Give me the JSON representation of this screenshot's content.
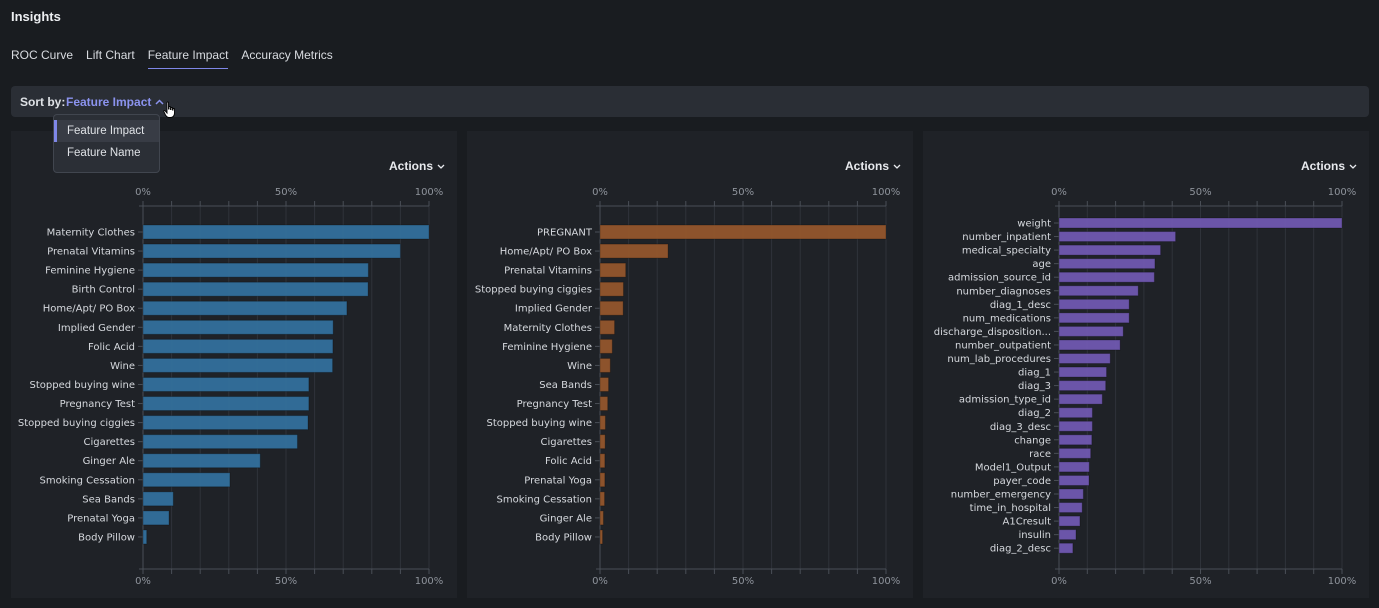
{
  "header": {
    "title": "Insights"
  },
  "tabs": [
    {
      "label": "ROC Curve",
      "active": false
    },
    {
      "label": "Lift Chart",
      "active": false
    },
    {
      "label": "Feature Impact",
      "active": true
    },
    {
      "label": "Accuracy Metrics",
      "active": false
    }
  ],
  "sort": {
    "label": "Sort by:",
    "value": "Feature Impact",
    "options": [
      {
        "label": "Feature Impact",
        "selected": true
      },
      {
        "label": "Feature Name",
        "selected": false
      }
    ]
  },
  "colors": {
    "accent": "#8b93ee",
    "series1": "#33709c",
    "series2": "#93562c",
    "series3": "#7059b0"
  },
  "panels": [
    {
      "actions_label": "Actions"
    },
    {
      "actions_label": "Actions"
    },
    {
      "actions_label": "Actions"
    }
  ],
  "chart_data": [
    {
      "type": "bar",
      "orientation": "horizontal",
      "title": "",
      "xlabel": "",
      "ylabel": "",
      "xlim": [
        0,
        100
      ],
      "x_ticks": [
        "0%",
        "50%",
        "100%"
      ],
      "grid": true,
      "color": "#33709c",
      "categories": [
        "Maternity Clothes",
        "Prenatal Vitamins",
        "Feminine Hygiene",
        "Birth Control",
        "Home/Apt/ PO Box",
        "Implied Gender",
        "Folic Acid",
        "Wine",
        "Stopped buying wine",
        "Pregnancy Test",
        "Stopped buying ciggies",
        "Cigarettes",
        "Ginger Ale",
        "Smoking Cessation",
        "Sea Bands",
        "Prenatal Yoga",
        "Body Pillow"
      ],
      "values": [
        100,
        90,
        78.8,
        78.7,
        71.3,
        66.5,
        66.4,
        66.3,
        58,
        58,
        57.7,
        54,
        41,
        30.4,
        10.6,
        9.1,
        1.3
      ]
    },
    {
      "type": "bar",
      "orientation": "horizontal",
      "title": "",
      "xlabel": "",
      "ylabel": "",
      "xlim": [
        0,
        100
      ],
      "x_ticks": [
        "0%",
        "50%",
        "100%"
      ],
      "grid": true,
      "color": "#93562c",
      "categories": [
        "PREGNANT",
        "Home/Apt/ PO Box",
        "Prenatal Vitamins",
        "Stopped buying ciggies",
        "Implied Gender",
        "Maternity Clothes",
        "Feminine Hygiene",
        "Wine",
        "Sea Bands",
        "Pregnancy Test",
        "Stopped buying wine",
        "Cigarettes",
        "Folic Acid",
        "Prenatal Yoga",
        "Smoking Cessation",
        "Ginger Ale",
        "Body Pillow"
      ],
      "values": [
        100,
        23.8,
        9,
        8.2,
        8.1,
        5.1,
        4.3,
        3.6,
        3.0,
        2.7,
        1.9,
        1.8,
        1.7,
        1.7,
        1.6,
        1.2,
        0.9
      ]
    },
    {
      "type": "bar",
      "orientation": "horizontal",
      "title": "",
      "xlabel": "",
      "ylabel": "",
      "xlim": [
        0,
        100
      ],
      "x_ticks": [
        "0%",
        "50%",
        "100%"
      ],
      "grid": true,
      "color": "#7059b0",
      "categories": [
        "weight",
        "number_inpatient",
        "medical_specialty",
        "age",
        "admission_source_id",
        "number_diagnoses",
        "diag_1_desc",
        "num_medications",
        "discharge_disposition...",
        "number_outpatient",
        "num_lab_procedures",
        "diag_1",
        "diag_3",
        "admission_type_id",
        "diag_2",
        "diag_3_desc",
        "change",
        "race",
        "Model1_Output",
        "payer_code",
        "number_emergency",
        "time_in_hospital",
        "A1Cresult",
        "insulin",
        "diag_2_desc"
      ],
      "values": [
        100,
        41.2,
        35.9,
        33.9,
        33.7,
        28,
        24.8,
        24.8,
        22.7,
        21.6,
        18.1,
        16.8,
        16.5,
        15.3,
        11.8,
        11.8,
        11.6,
        11.2,
        10.7,
        10.6,
        8.6,
        8.2,
        7.4,
        6,
        4.9
      ]
    }
  ]
}
